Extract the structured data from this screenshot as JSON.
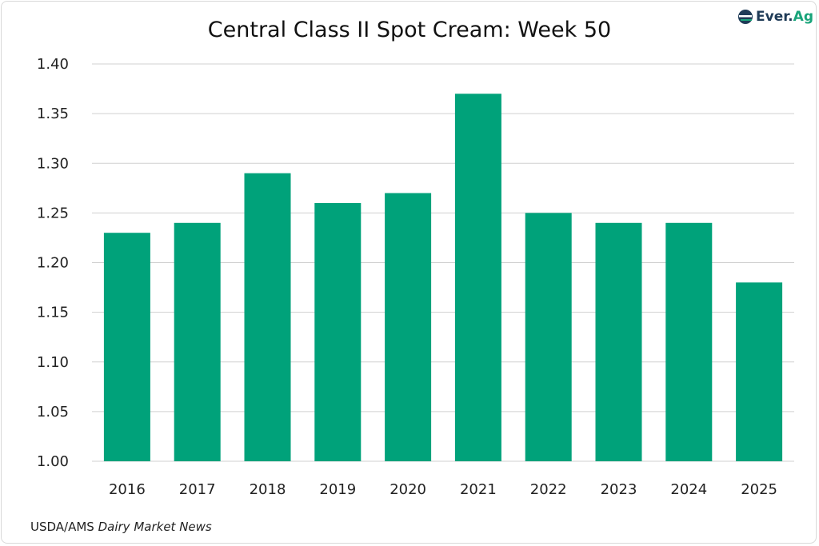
{
  "chart_data": {
    "type": "bar",
    "title": "Central Class II Spot Cream: Week 50",
    "categories": [
      "2016",
      "2017",
      "2018",
      "2019",
      "2020",
      "2021",
      "2022",
      "2023",
      "2024",
      "2025"
    ],
    "values": [
      1.23,
      1.24,
      1.29,
      1.26,
      1.27,
      1.37,
      1.25,
      1.24,
      1.24,
      1.18
    ],
    "ylim": [
      1.0,
      1.4
    ],
    "yticks": [
      "1.00",
      "1.05",
      "1.10",
      "1.15",
      "1.20",
      "1.25",
      "1.30",
      "1.35",
      "1.40"
    ],
    "xlabel": "",
    "ylabel": "",
    "grid": true,
    "bar_color": "#00a27a"
  },
  "logo": {
    "text_a": "Ever.",
    "text_b": "Ag"
  },
  "source": {
    "prefix": "USDA/AMS ",
    "italic": "Dairy Market News"
  }
}
